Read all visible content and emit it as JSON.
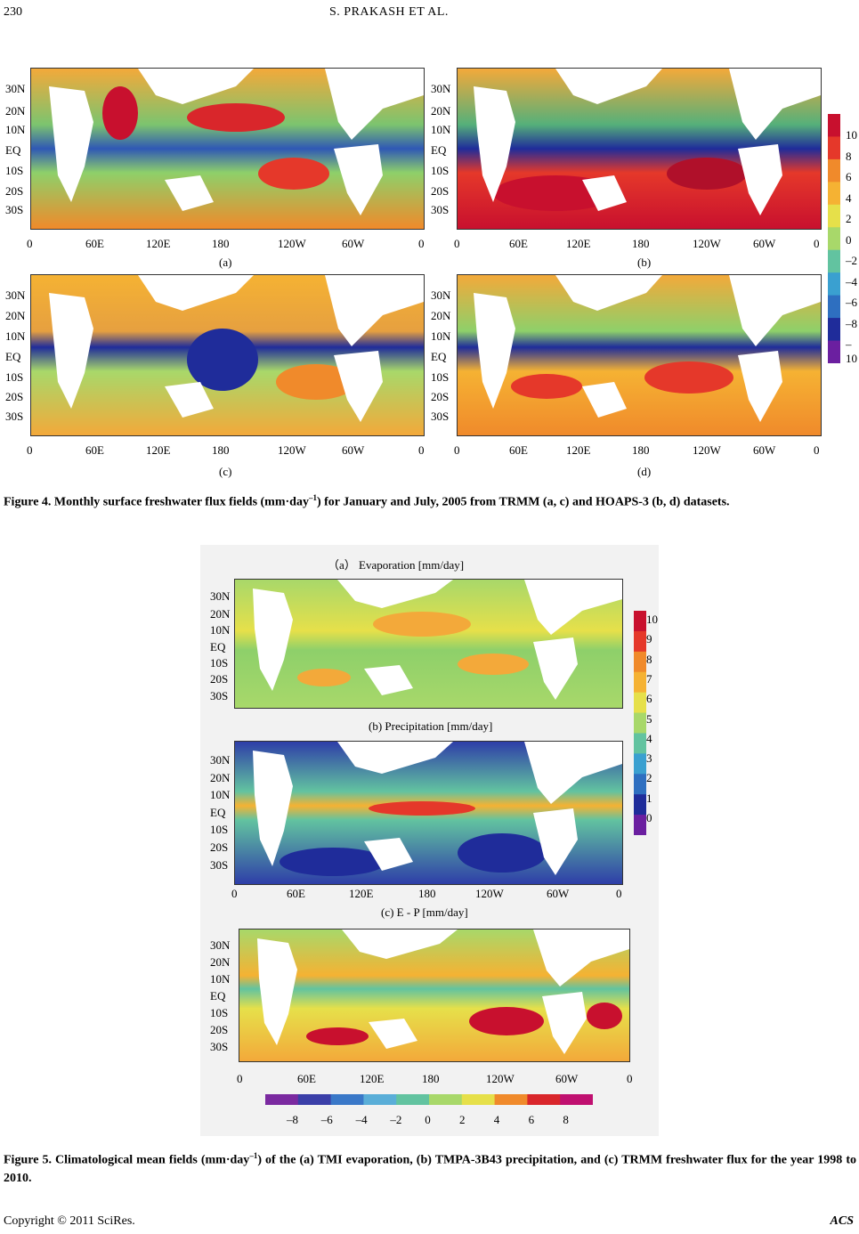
{
  "header": {
    "page_number": "230",
    "authors": "S. PRAKASH    ET    AL."
  },
  "figure4": {
    "panel_labels": [
      "(a)",
      "(b)",
      "(c)",
      "(d)"
    ],
    "lat_labels": [
      "30N",
      "20N",
      "10N",
      "EQ",
      "10S",
      "20S",
      "30S"
    ],
    "lon_labels": [
      "0",
      "60E",
      "120E",
      "180",
      "120W",
      "60W",
      "0"
    ],
    "colorbar_labels": [
      "10",
      "8",
      "6",
      "4",
      "2",
      "0",
      "–2",
      "–4",
      "–6",
      "–8",
      "–10"
    ],
    "colorbar_colors": [
      "#c8102e",
      "#e5382a",
      "#f08a2b",
      "#f5b233",
      "#e6e04a",
      "#a8d86a",
      "#62c3a0",
      "#3aa0d0",
      "#2e6fc0",
      "#1f2c9a",
      "#6b1fa0"
    ],
    "caption_prefix": "Figure 4. Monthly surface freshwater flux fields (mm·day",
    "caption_sup": "–1",
    "caption_suffix": ") for January and July, 2005 from TRMM (a, c) and HOAPS-3 (b, d) datasets."
  },
  "figure5": {
    "panel_titles": [
      "（a） Evaporation [mm/day]",
      "(b)  Precipitation [mm/day]",
      "(c)   E - P  [mm/day]"
    ],
    "lat_labels": [
      "30N",
      "20N",
      "10N",
      "EQ",
      "10S",
      "20S",
      "30S"
    ],
    "lon_labels": [
      "0",
      "60E",
      "120E",
      "180",
      "120W",
      "60W",
      "0"
    ],
    "colorbar_vertical_labels": [
      "10",
      "9",
      "8",
      "7",
      "6",
      "5",
      "4",
      "3",
      "2",
      "1",
      "0"
    ],
    "colorbar_horizontal_labels": [
      "–8",
      "–6",
      "–4",
      "–2",
      "0",
      "2",
      "4",
      "6",
      "8"
    ],
    "caption_prefix": "Figure 5. Climatological mean fields (mm·day",
    "caption_sup": "–1",
    "caption_suffix": ") of the (a) TMI evaporation, (b) TMPA-3B43 precipitation, and (c) TRMM freshwater flux for the year 1998 to 2010."
  },
  "footer": {
    "copyright": "Copyright © 2011 SciRes.",
    "journal": "ACS"
  }
}
